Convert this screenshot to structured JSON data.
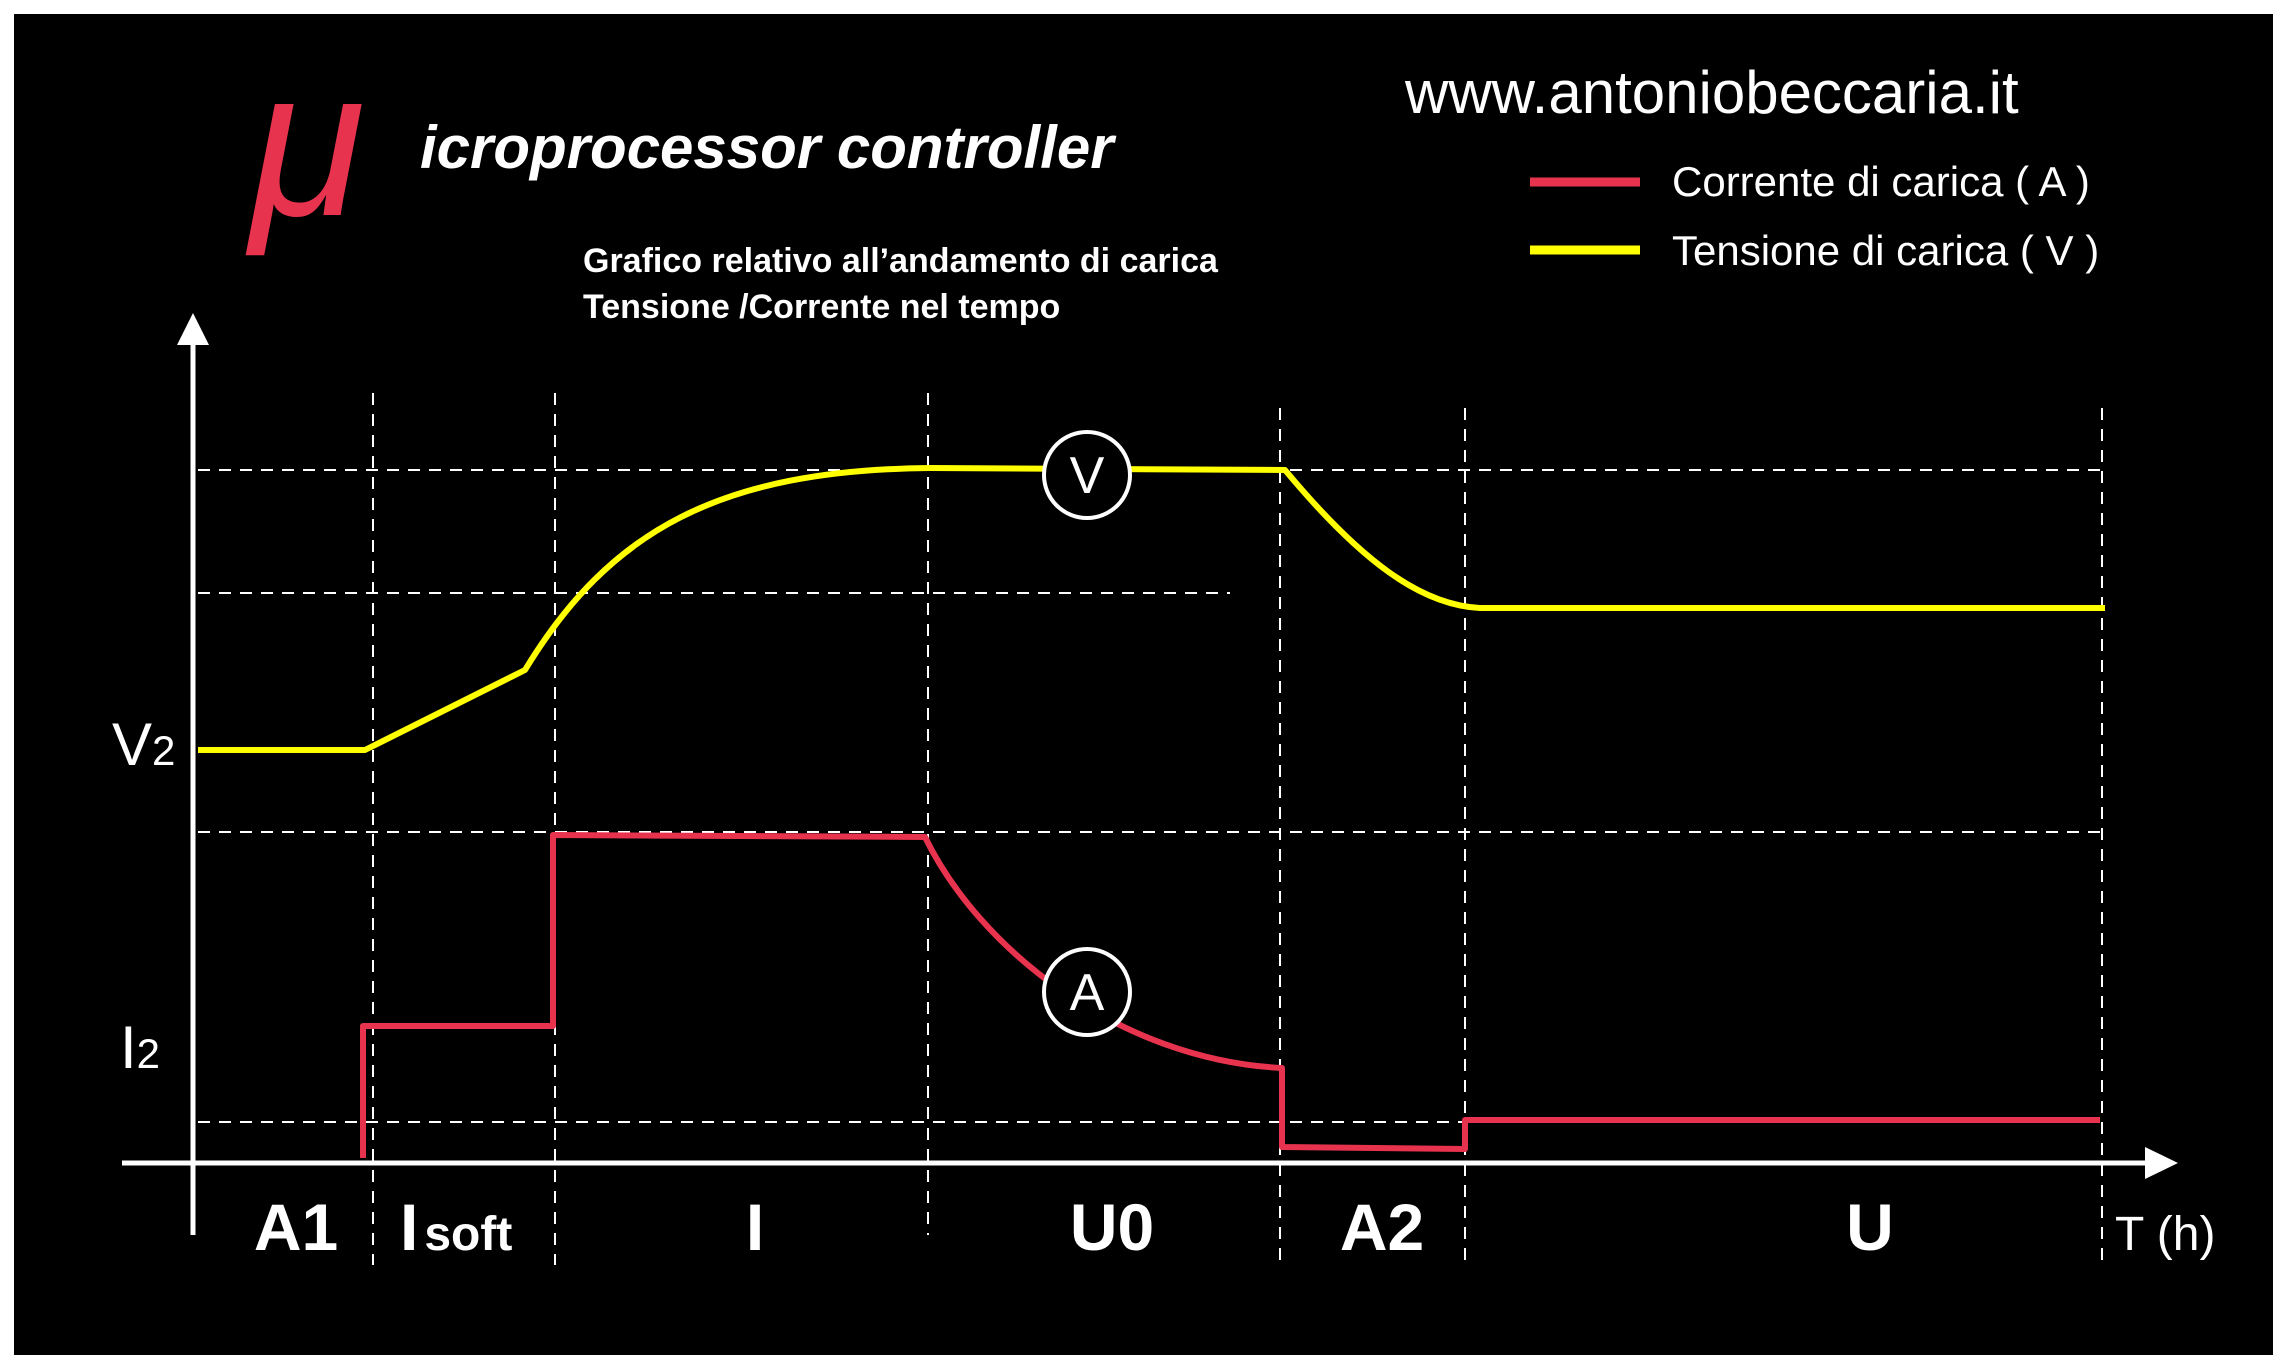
{
  "logo": {
    "mu": "μ",
    "text": "icroprocessor controller"
  },
  "website": "www.antoniobeccaria.it",
  "subtitle": [
    "Grafico relativo all’andamento di carica",
    "Tensione /Corrente nel tempo"
  ],
  "legend": [
    {
      "label": "Corrente di carica ( A )",
      "color": "#e8334f"
    },
    {
      "label": "Tensione di carica ( V )",
      "color": "#ffff00"
    }
  ],
  "y_labels": {
    "voltage": "V",
    "voltage_sub": "2",
    "current": "I",
    "current_sub": "2"
  },
  "phases": [
    {
      "label": "A1"
    },
    {
      "label": "I",
      "sub": "soft"
    },
    {
      "label": "I"
    },
    {
      "label": "U0"
    },
    {
      "label": "A2"
    },
    {
      "label": "U"
    }
  ],
  "x_axis_label": "T (h)",
  "curve_markers": {
    "voltage": "V",
    "current": "A"
  },
  "colors": {
    "background": "#000000",
    "frame": "#ffffff",
    "text": "#ffffff",
    "logo_mu": "#e8334f",
    "current": "#e8334f",
    "voltage": "#ffff00",
    "grid": "#ffffff"
  }
}
